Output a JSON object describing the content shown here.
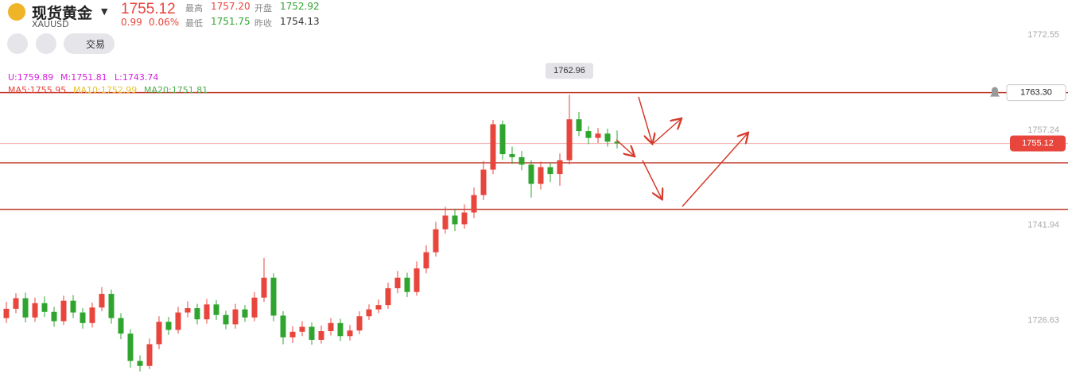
{
  "header": {
    "name": "现货黄金",
    "symbol": "XAUUSD",
    "price": "1755.12",
    "change": "0.99",
    "change_pct": "0.06%",
    "stats": [
      {
        "label": "最高",
        "value": "1757.20"
      },
      {
        "label": "开盘",
        "value": "1752.92"
      },
      {
        "label": "最低",
        "value": "1751.75"
      },
      {
        "label": "昨收",
        "value": "1754.13"
      }
    ],
    "trade_button": "交易"
  },
  "indicators": {
    "boll": [
      "U:1759.89",
      "M:1751.81",
      "L:1743.74"
    ],
    "ma": [
      "MA5:1755.95",
      "MA10:1752.99",
      "MA20:1751.81"
    ]
  },
  "chart_data": {
    "type": "candlestick",
    "up_color": "#e8453c",
    "down_color": "#2fa52f",
    "ylim": [
      1718,
      1778.2
    ],
    "yticks": [
      1726.63,
      1741.94,
      1757.24,
      1772.55
    ],
    "open": [
      1727.0,
      1728.5,
      1730.2,
      1727.1,
      1729.4,
      1728.0,
      1726.5,
      1729.8,
      1727.9,
      1726.2,
      1728.7,
      1730.9,
      1727.0,
      1724.5,
      1720.1,
      1719.3,
      1722.8,
      1726.4,
      1725.1,
      1727.9,
      1728.6,
      1726.8,
      1729.2,
      1727.5,
      1726.0,
      1728.4,
      1727.1,
      1730.3,
      1733.5,
      1727.4,
      1723.9,
      1724.8,
      1725.6,
      1723.5,
      1724.9,
      1726.2,
      1724.1,
      1725.0,
      1727.3,
      1728.4,
      1729.1,
      1731.8,
      1733.5,
      1731.2,
      1735.0,
      1737.6,
      1741.3,
      1743.5,
      1742.1,
      1744.0,
      1746.8,
      1750.9,
      1758.2,
      1753.4,
      1752.9,
      1751.7,
      1748.6,
      1751.3,
      1750.2,
      1752.4,
      1759.0,
      1757.1,
      1756.0,
      1756.7,
      1755.4
    ],
    "high": [
      1729.6,
      1731.0,
      1731.1,
      1730.3,
      1730.5,
      1728.8,
      1730.6,
      1730.7,
      1728.6,
      1729.5,
      1732.0,
      1731.6,
      1727.8,
      1725.2,
      1721.0,
      1723.7,
      1727.3,
      1727.2,
      1728.8,
      1729.7,
      1729.3,
      1730.1,
      1729.9,
      1728.2,
      1729.3,
      1729.1,
      1731.2,
      1736.7,
      1734.2,
      1728.1,
      1725.7,
      1726.5,
      1726.3,
      1725.8,
      1727.0,
      1726.9,
      1725.9,
      1728.1,
      1729.2,
      1730.0,
      1732.7,
      1734.6,
      1734.3,
      1736.1,
      1738.7,
      1742.5,
      1744.9,
      1744.6,
      1745.3,
      1748.0,
      1752.3,
      1758.9,
      1758.8,
      1754.6,
      1753.9,
      1752.4,
      1752.2,
      1752.0,
      1753.5,
      1762.96,
      1760.2,
      1757.9,
      1757.6,
      1757.5,
      1757.2
    ],
    "low": [
      1726.2,
      1727.8,
      1726.3,
      1726.4,
      1727.2,
      1725.6,
      1725.9,
      1727.0,
      1725.3,
      1725.5,
      1728.1,
      1726.1,
      1723.6,
      1719.0,
      1718.4,
      1718.8,
      1722.0,
      1724.3,
      1724.5,
      1727.1,
      1726.0,
      1726.1,
      1726.7,
      1725.2,
      1725.3,
      1726.4,
      1726.5,
      1729.6,
      1726.5,
      1722.8,
      1723.0,
      1724.1,
      1722.7,
      1722.9,
      1724.2,
      1723.3,
      1723.4,
      1724.4,
      1726.7,
      1727.8,
      1728.5,
      1731.0,
      1730.4,
      1730.6,
      1734.2,
      1736.9,
      1740.6,
      1741.0,
      1741.4,
      1743.1,
      1746.0,
      1750.2,
      1752.5,
      1751.8,
      1750.8,
      1746.4,
      1747.7,
      1748.9,
      1748.3,
      1751.7,
      1756.3,
      1755.0,
      1755.2,
      1754.6,
      1754.3
    ],
    "close": [
      1728.5,
      1730.2,
      1727.1,
      1729.4,
      1728.0,
      1726.5,
      1729.8,
      1727.9,
      1726.2,
      1728.7,
      1730.9,
      1727.0,
      1724.5,
      1720.1,
      1719.3,
      1722.8,
      1726.4,
      1725.1,
      1727.9,
      1728.6,
      1726.8,
      1729.2,
      1727.5,
      1726.0,
      1728.4,
      1727.1,
      1730.3,
      1733.5,
      1727.4,
      1723.9,
      1724.8,
      1725.6,
      1723.5,
      1724.9,
      1726.2,
      1724.1,
      1725.0,
      1727.3,
      1728.4,
      1729.1,
      1731.8,
      1733.5,
      1731.2,
      1735.0,
      1737.6,
      1741.3,
      1743.5,
      1742.1,
      1744.0,
      1746.8,
      1750.9,
      1758.2,
      1753.4,
      1752.9,
      1751.7,
      1748.6,
      1751.3,
      1750.2,
      1752.4,
      1759.0,
      1757.1,
      1756.0,
      1756.7,
      1755.4,
      1755.12
    ],
    "high_label_index": 59,
    "resistance": {
      "value": 1763.3,
      "label": "1763.30"
    },
    "support_lines": [
      1752.0,
      1744.5
    ],
    "last_price": 1755.12
  }
}
